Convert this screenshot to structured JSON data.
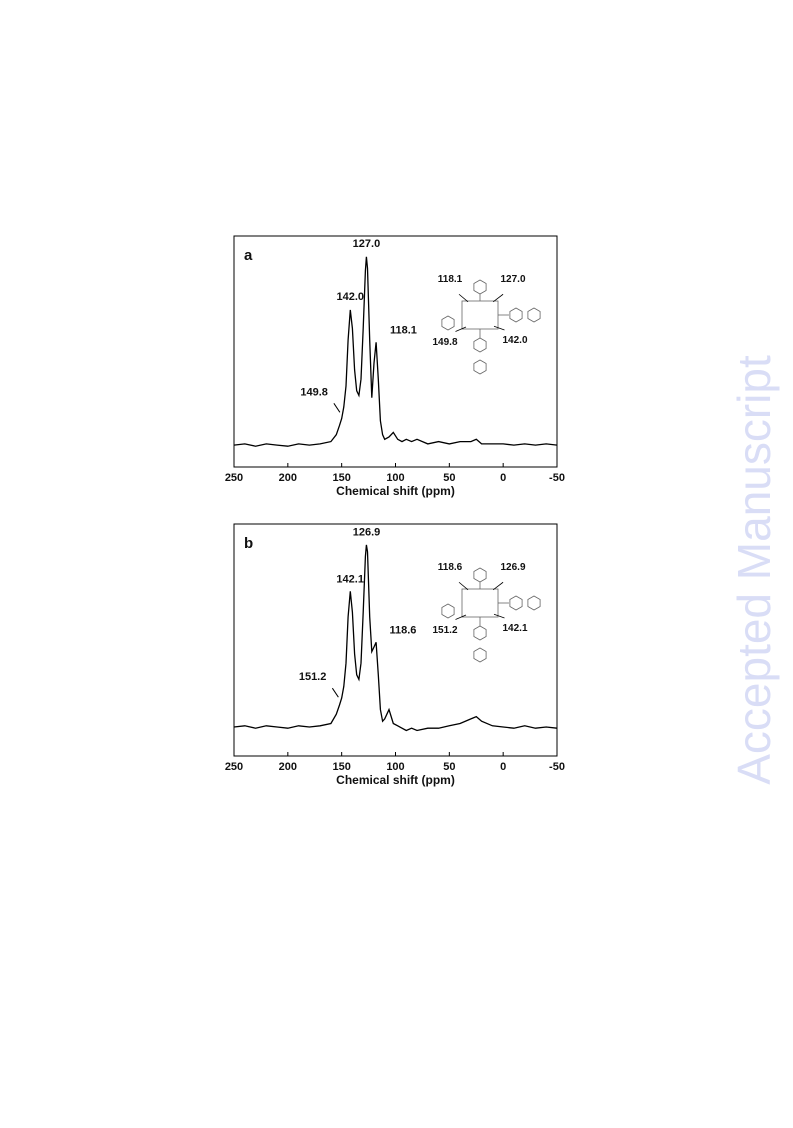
{
  "watermark": "Accepted Manuscript",
  "chart_data": [
    {
      "type": "line",
      "panel": "a",
      "x_label": "Chemical shift (ppm)",
      "color": "#000000",
      "xlim": [
        250,
        -50
      ],
      "xticks": [
        250,
        200,
        150,
        100,
        50,
        0,
        -50
      ],
      "ylim": [
        0,
        100
      ],
      "x": [
        250,
        240,
        230,
        220,
        210,
        200,
        190,
        180,
        170,
        160,
        155,
        152,
        150,
        148,
        146,
        144,
        142,
        140,
        138,
        136,
        134,
        132,
        130,
        128,
        127,
        126,
        124,
        122,
        120,
        118,
        116,
        114,
        112,
        110,
        106,
        102,
        98,
        94,
        90,
        85,
        80,
        70,
        60,
        50,
        40,
        30,
        25,
        20,
        10,
        0,
        -10,
        -20,
        -30,
        -40,
        -50
      ],
      "values": [
        9.5,
        10,
        9,
        10,
        9.5,
        9,
        10,
        9.5,
        10,
        11,
        14,
        18,
        21,
        26,
        35,
        55,
        68,
        60,
        42,
        33,
        31,
        38,
        60,
        85,
        91,
        86,
        55,
        30,
        45,
        54,
        38,
        20,
        14,
        12,
        13,
        15,
        12,
        11,
        12,
        11,
        12,
        10,
        11,
        10,
        11,
        11,
        12,
        10,
        10,
        10,
        9.5,
        10,
        9.5,
        10,
        9.5
      ],
      "annotations": [
        {
          "x": 149.8,
          "label": "149.8"
        },
        {
          "x": 142.0,
          "label": "142.0"
        },
        {
          "x": 127.0,
          "label": "127.0"
        },
        {
          "x": 118.1,
          "label": "118.1"
        }
      ],
      "inset_labels": [
        "118.1",
        "127.0",
        "149.8",
        "142.0"
      ]
    },
    {
      "type": "line",
      "panel": "b",
      "x_label": "Chemical shift (ppm)",
      "color": "#000000",
      "xlim": [
        250,
        -50
      ],
      "xticks": [
        250,
        200,
        150,
        100,
        50,
        0,
        -50
      ],
      "ylim": [
        0,
        100
      ],
      "x": [
        250,
        240,
        230,
        220,
        210,
        200,
        190,
        180,
        170,
        160,
        155,
        152,
        150,
        148,
        146,
        144,
        142,
        140,
        138,
        136,
        134,
        132,
        130,
        128,
        127,
        126,
        124,
        122,
        120,
        118,
        116,
        114,
        112,
        110,
        106,
        102,
        98,
        94,
        90,
        85,
        80,
        70,
        60,
        50,
        40,
        30,
        25,
        20,
        10,
        0,
        -10,
        -20,
        -30,
        -40,
        -50
      ],
      "values": [
        12.5,
        13,
        12,
        13,
        12.5,
        12,
        13,
        12.5,
        13,
        14,
        18,
        22,
        25,
        30,
        40,
        60,
        71,
        62,
        44,
        35,
        33,
        40,
        62,
        86,
        91,
        88,
        60,
        45,
        47,
        49,
        35,
        20,
        15,
        16,
        20,
        14,
        13,
        12,
        11,
        12,
        11,
        12,
        12,
        13,
        14,
        16,
        17,
        15,
        13,
        12.5,
        12,
        13,
        12,
        12.5,
        12
      ],
      "annotations": [
        {
          "x": 151.2,
          "label": "151.2"
        },
        {
          "x": 142.1,
          "label": "142.1"
        },
        {
          "x": 126.9,
          "label": "126.9"
        },
        {
          "x": 118.6,
          "label": "118.6"
        }
      ],
      "inset_labels": [
        "118.6",
        "126.9",
        "151.2",
        "142.1"
      ]
    }
  ]
}
